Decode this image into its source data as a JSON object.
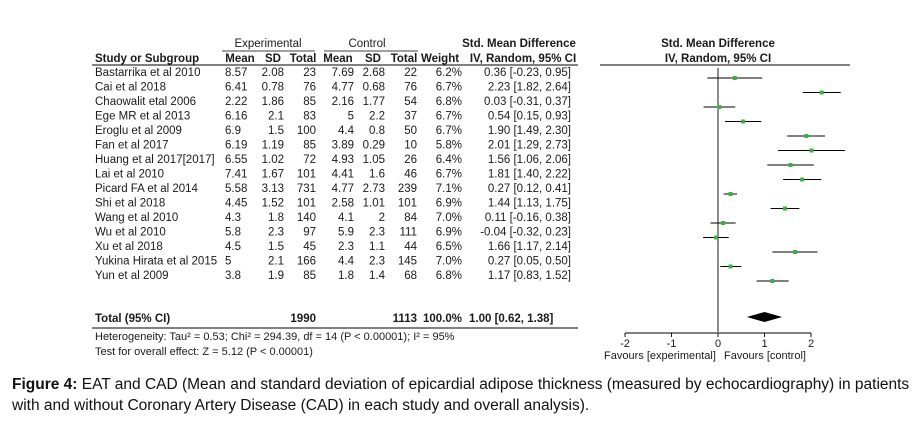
{
  "chart_data": {
    "type": "forest",
    "column_headers": {
      "group_experimental": "Experimental",
      "group_control": "Control",
      "smd_header": "Std. Mean Difference",
      "study": "Study or Subgroup",
      "mean": "Mean",
      "sd": "SD",
      "total": "Total",
      "weight": "Weight",
      "ci": "IV, Random, 95% CI",
      "plot_header": "Std. Mean Difference",
      "plot_subheader": "IV, Random, 95% CI"
    },
    "studies": [
      {
        "name": "Bastarrika et al  2010",
        "e_mean": "8.57",
        "e_sd": "2.08",
        "e_total": "23",
        "c_mean": "7.69",
        "c_sd": "2.68",
        "c_total": "22",
        "weight": "6.2%",
        "ci_text": "0.36 [-0.23, 0.95]",
        "est": 0.36,
        "lo": -0.23,
        "hi": 0.95
      },
      {
        "name": "Cai et al 2018",
        "e_mean": "6.41",
        "e_sd": "0.78",
        "e_total": "76",
        "c_mean": "4.77",
        "c_sd": "0.68",
        "c_total": "76",
        "weight": "6.7%",
        "ci_text": "2.23 [1.82, 2.64]",
        "est": 2.23,
        "lo": 1.82,
        "hi": 2.64
      },
      {
        "name": "Chaowalit etal 2006",
        "e_mean": "2.22",
        "e_sd": "1.86",
        "e_total": "85",
        "c_mean": "2.16",
        "c_sd": "1.77",
        "c_total": "54",
        "weight": "6.8%",
        "ci_text": "0.03 [-0.31, 0.37]",
        "est": 0.03,
        "lo": -0.31,
        "hi": 0.37
      },
      {
        "name": "Ege MR et al 2013",
        "e_mean": "6.16",
        "e_sd": "2.1",
        "e_total": "83",
        "c_mean": "5",
        "c_sd": "2.2",
        "c_total": "37",
        "weight": "6.7%",
        "ci_text": "0.54 [0.15, 0.93]",
        "est": 0.54,
        "lo": 0.15,
        "hi": 0.93
      },
      {
        "name": "Eroglu et al 2009",
        "e_mean": "6.9",
        "e_sd": "1.5",
        "e_total": "100",
        "c_mean": "4.4",
        "c_sd": "0.8",
        "c_total": "50",
        "weight": "6.7%",
        "ci_text": "1.90 [1.49, 2.30]",
        "est": 1.9,
        "lo": 1.49,
        "hi": 2.3
      },
      {
        "name": "Fan et al 2017",
        "e_mean": "6.19",
        "e_sd": "1.19",
        "e_total": "85",
        "c_mean": "3.89",
        "c_sd": "0.29",
        "c_total": "10",
        "weight": "5.8%",
        "ci_text": "2.01 [1.29, 2.73]",
        "est": 2.01,
        "lo": 1.29,
        "hi": 2.73
      },
      {
        "name": "Huang et al 2017[2017]",
        "e_mean": "6.55",
        "e_sd": "1.02",
        "e_total": "72",
        "c_mean": "4.93",
        "c_sd": "1.05",
        "c_total": "26",
        "weight": "6.4%",
        "ci_text": "1.56 [1.06, 2.06]",
        "est": 1.56,
        "lo": 1.06,
        "hi": 2.06
      },
      {
        "name": "Lai et al 2010",
        "e_mean": "7.41",
        "e_sd": "1.67",
        "e_total": "101",
        "c_mean": "4.41",
        "c_sd": "1.6",
        "c_total": "46",
        "weight": "6.7%",
        "ci_text": "1.81 [1.40, 2.22]",
        "est": 1.81,
        "lo": 1.4,
        "hi": 2.22
      },
      {
        "name": "Picard FA et al 2014",
        "e_mean": "5.58",
        "e_sd": "3.13",
        "e_total": "731",
        "c_mean": "4.77",
        "c_sd": "2.73",
        "c_total": "239",
        "weight": "7.1%",
        "ci_text": "0.27 [0.12, 0.41]",
        "est": 0.27,
        "lo": 0.12,
        "hi": 0.41
      },
      {
        "name": "Shi et al 2018",
        "e_mean": "4.45",
        "e_sd": "1.52",
        "e_total": "101",
        "c_mean": "2.58",
        "c_sd": "1.01",
        "c_total": "101",
        "weight": "6.9%",
        "ci_text": "1.44 [1.13, 1.75]",
        "est": 1.44,
        "lo": 1.13,
        "hi": 1.75
      },
      {
        "name": "Wang  et al 2010",
        "e_mean": "4.3",
        "e_sd": "1.8",
        "e_total": "140",
        "c_mean": "4.1",
        "c_sd": "2",
        "c_total": "84",
        "weight": "7.0%",
        "ci_text": "0.11 [-0.16, 0.38]",
        "est": 0.11,
        "lo": -0.16,
        "hi": 0.38
      },
      {
        "name": "Wu et al 2010",
        "e_mean": "5.8",
        "e_sd": "2.3",
        "e_total": "97",
        "c_mean": "5.9",
        "c_sd": "2.3",
        "c_total": "111",
        "weight": "6.9%",
        "ci_text": "-0.04 [-0.32, 0.23]",
        "est": -0.04,
        "lo": -0.32,
        "hi": 0.23
      },
      {
        "name": "Xu et al 2018",
        "e_mean": "4.5",
        "e_sd": "1.5",
        "e_total": "45",
        "c_mean": "2.3",
        "c_sd": "1.1",
        "c_total": "44",
        "weight": "6.5%",
        "ci_text": "1.66 [1.17, 2.14]",
        "est": 1.66,
        "lo": 1.17,
        "hi": 2.14
      },
      {
        "name": "Yukina Hirata et al 2015",
        "e_mean": "5",
        "e_sd": "2.1",
        "e_total": "166",
        "c_mean": "4.4",
        "c_sd": "2.3",
        "c_total": "145",
        "weight": "7.0%",
        "ci_text": "0.27 [0.05, 0.50]",
        "est": 0.27,
        "lo": 0.05,
        "hi": 0.5
      },
      {
        "name": "Yun et al 2009",
        "e_mean": "3.8",
        "e_sd": "1.9",
        "e_total": "85",
        "c_mean": "1.8",
        "c_sd": "1.4",
        "c_total": "68",
        "weight": "6.8%",
        "ci_text": "1.17 [0.83, 1.52]",
        "est": 1.17,
        "lo": 0.83,
        "hi": 1.52
      }
    ],
    "total": {
      "label": "Total (95% CI)",
      "e_total": "1990",
      "c_total": "1113",
      "weight": "100.0%",
      "ci_text": "1.00 [0.62, 1.38]",
      "est": 1.0,
      "lo": 0.62,
      "hi": 1.38
    },
    "heterogeneity": "Heterogeneity: Tau² = 0.53; Chi² = 294.39, df = 14 (P < 0.00001); I² = 95%",
    "overall_effect": "Test for overall effect: Z = 5.12 (P < 0.00001)",
    "xaxis": {
      "ticks": [
        -2,
        -1,
        0,
        1,
        2
      ],
      "tick_labels": [
        "-2",
        "-1",
        "0",
        "1",
        "2"
      ],
      "xlim": [
        -2,
        2
      ],
      "label_left": "Favours [experimental]",
      "label_right": "Favours [control]"
    },
    "colors": {
      "marker": "#3cb043",
      "line": "#000000",
      "diamond": "#000000"
    }
  },
  "caption": {
    "label": "Figure 4:",
    "text": " EAT and CAD (Mean and standard deviation of epicardial adipose thickness (measured by echocardiography) in patients with and without Coronary Artery Disease (CAD) in each study and overall analysis)."
  }
}
